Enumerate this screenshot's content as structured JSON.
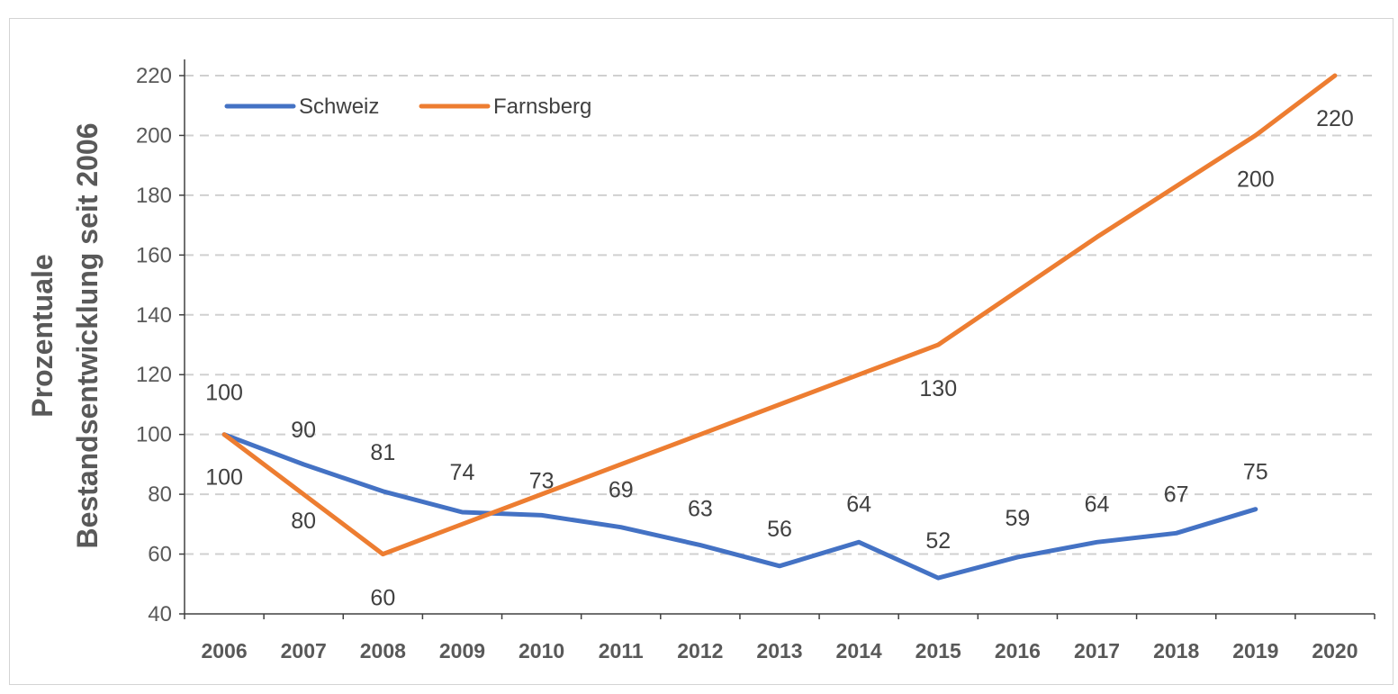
{
  "chart_data": {
    "type": "line",
    "title": "",
    "xlabel": "",
    "ylabel_line1": "Prozentuale",
    "ylabel_line2": "Bestandsentwicklung seit 2006",
    "categories": [
      "2006",
      "2007",
      "2008",
      "2009",
      "2010",
      "2011",
      "2012",
      "2013",
      "2014",
      "2015",
      "2016",
      "2017",
      "2018",
      "2019",
      "2020"
    ],
    "ylim": [
      40,
      220
    ],
    "yticks": [
      40,
      60,
      80,
      100,
      120,
      140,
      160,
      180,
      200,
      220
    ],
    "grid": true,
    "legend_position": "top-left",
    "series": [
      {
        "name": "Schweiz",
        "color": "#4472c4",
        "values": [
          100,
          90,
          81,
          74,
          73,
          69,
          63,
          56,
          64,
          52,
          59,
          64,
          67,
          75,
          null
        ],
        "labels": [
          "100",
          "90",
          "81",
          "74",
          "73",
          "69",
          "63",
          "56",
          "64",
          "52",
          "59",
          "64",
          "67",
          "75",
          null
        ]
      },
      {
        "name": "Farnsberg",
        "color": "#ed7d31",
        "values": [
          100,
          80,
          60,
          70,
          80,
          90,
          100,
          110,
          120,
          130,
          148,
          166,
          183,
          200,
          220
        ],
        "labels": [
          "100",
          "80",
          "60",
          null,
          null,
          null,
          null,
          null,
          null,
          "130",
          null,
          null,
          null,
          "200",
          "220"
        ]
      }
    ]
  }
}
